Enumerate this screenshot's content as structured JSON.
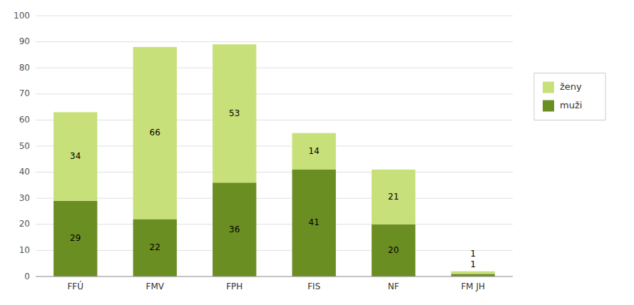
{
  "chart_data": {
    "type": "bar",
    "stacked": true,
    "categories": [
      "FFÚ",
      "FMV",
      "FPH",
      "FIS",
      "NF",
      "FM JH"
    ],
    "series": [
      {
        "name": "muži",
        "color": "#6b8e23",
        "values": [
          29,
          22,
          36,
          41,
          20,
          1
        ]
      },
      {
        "name": "ženy",
        "color": "#c8e07a",
        "values": [
          34,
          66,
          53,
          14,
          21,
          1
        ]
      }
    ],
    "ylim": [
      0,
      100
    ],
    "yticks": [
      0,
      10,
      20,
      30,
      40,
      50,
      60,
      70,
      80,
      90,
      100
    ],
    "grid": true,
    "legend": "right",
    "data_labels": true
  }
}
